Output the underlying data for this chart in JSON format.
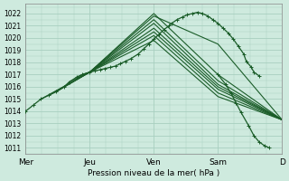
{
  "background_color": "#ceeade",
  "grid_color": "#a8cfc0",
  "line_color": "#1a5c28",
  "ylim": [
    1010.5,
    1022.8
  ],
  "yticks": [
    1011,
    1012,
    1013,
    1014,
    1015,
    1016,
    1017,
    1018,
    1019,
    1020,
    1021,
    1022
  ],
  "xlabel": "Pression niveau de la mer( hPa )",
  "xtick_labels": [
    "Mer",
    "Jeu",
    "Ven",
    "Sam",
    "D"
  ],
  "xtick_positions": [
    0.0,
    0.25,
    0.5,
    0.75,
    1.0
  ],
  "main_x": [
    0.0,
    0.03,
    0.06,
    0.09,
    0.12,
    0.15,
    0.17,
    0.2,
    0.22,
    0.25,
    0.27,
    0.29,
    0.31,
    0.33,
    0.35,
    0.37,
    0.39,
    0.41,
    0.44,
    0.46,
    0.48,
    0.5,
    0.52,
    0.54,
    0.56,
    0.57,
    0.59,
    0.61,
    0.63,
    0.65,
    0.67,
    0.69,
    0.71,
    0.73,
    0.75,
    0.77,
    0.79,
    0.81,
    0.83,
    0.85,
    0.86,
    0.88,
    0.89,
    0.91
  ],
  "main_y": [
    1014.0,
    1014.5,
    1015.0,
    1015.3,
    1015.6,
    1016.0,
    1016.4,
    1016.8,
    1017.0,
    1017.2,
    1017.3,
    1017.4,
    1017.5,
    1017.6,
    1017.7,
    1017.9,
    1018.1,
    1018.3,
    1018.7,
    1019.1,
    1019.5,
    1019.9,
    1020.3,
    1020.7,
    1021.0,
    1021.2,
    1021.5,
    1021.7,
    1021.9,
    1022.0,
    1022.1,
    1022.0,
    1021.8,
    1021.5,
    1021.2,
    1020.8,
    1020.4,
    1019.9,
    1019.3,
    1018.7,
    1018.1,
    1017.6,
    1017.2,
    1016.9
  ],
  "forecast_lines": [
    {
      "x": [
        0.25,
        0.5,
        0.75,
        1.0
      ],
      "y": [
        1017.2,
        1022.0,
        1017.0,
        1013.3
      ]
    },
    {
      "x": [
        0.25,
        0.5,
        0.75,
        1.0
      ],
      "y": [
        1017.2,
        1021.8,
        1019.5,
        1013.3
      ]
    },
    {
      "x": [
        0.25,
        0.5,
        0.75,
        1.0
      ],
      "y": [
        1017.2,
        1021.5,
        1016.5,
        1013.3
      ]
    },
    {
      "x": [
        0.25,
        0.5,
        0.75,
        1.0
      ],
      "y": [
        1017.2,
        1021.2,
        1016.2,
        1013.3
      ]
    },
    {
      "x": [
        0.25,
        0.5,
        0.75,
        1.0
      ],
      "y": [
        1017.2,
        1020.8,
        1016.0,
        1013.3
      ]
    },
    {
      "x": [
        0.25,
        0.5,
        0.75,
        1.0
      ],
      "y": [
        1017.2,
        1020.5,
        1015.8,
        1013.3
      ]
    },
    {
      "x": [
        0.25,
        0.5,
        0.75,
        1.0
      ],
      "y": [
        1017.2,
        1020.2,
        1015.5,
        1013.3
      ]
    },
    {
      "x": [
        0.25,
        0.5,
        0.75,
        1.0
      ],
      "y": [
        1017.2,
        1019.8,
        1015.2,
        1013.3
      ]
    }
  ],
  "early_segments": [
    {
      "x": [
        0.06,
        0.25
      ],
      "y": [
        1015.0,
        1017.2
      ]
    },
    {
      "x": [
        0.09,
        0.25
      ],
      "y": [
        1015.3,
        1017.2
      ]
    },
    {
      "x": [
        0.12,
        0.25
      ],
      "y": [
        1015.6,
        1017.2
      ]
    },
    {
      "x": [
        0.15,
        0.25
      ],
      "y": [
        1016.0,
        1017.2
      ]
    },
    {
      "x": [
        0.17,
        0.25
      ],
      "y": [
        1016.4,
        1017.2
      ]
    },
    {
      "x": [
        0.2,
        0.25
      ],
      "y": [
        1016.8,
        1017.2
      ]
    },
    {
      "x": [
        0.22,
        0.25
      ],
      "y": [
        1017.0,
        1017.2
      ]
    }
  ],
  "detail_segment_x": [
    0.75,
    0.78,
    0.8,
    0.82,
    0.84,
    0.87,
    0.89,
    0.91,
    0.93,
    0.95
  ],
  "detail_segment_y": [
    1017.0,
    1016.2,
    1015.5,
    1014.7,
    1013.9,
    1012.8,
    1012.0,
    1011.5,
    1011.2,
    1011.0
  ]
}
